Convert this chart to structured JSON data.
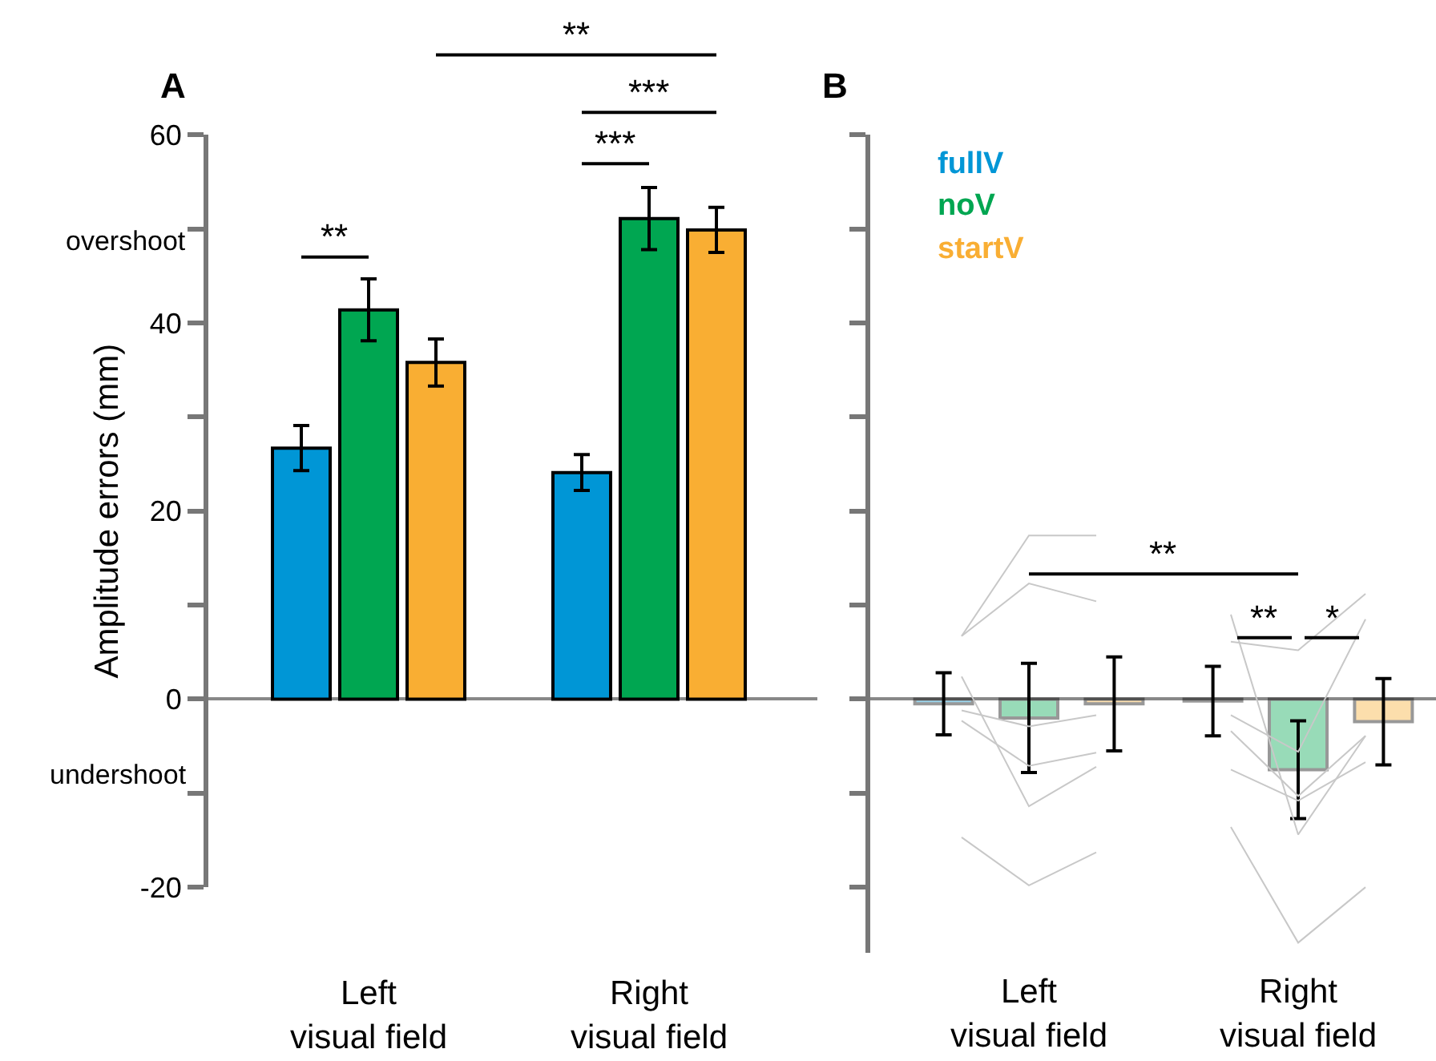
{
  "chart_data": [
    {
      "type": "bar",
      "title": "A",
      "ylabel": "Amplitude errors (mm)",
      "categories": [
        "Left visual field",
        "Right visual field"
      ],
      "series": [
        {
          "color": "#0096d6",
          "values": [
            26.7,
            24.1
          ],
          "errors": [
            2.4,
            1.9
          ]
        },
        {
          "color": "#00a651",
          "values": [
            41.4,
            51.1
          ],
          "errors": [
            3.3,
            3.3
          ]
        },
        {
          "color": "#f9ae33",
          "values": [
            35.8,
            49.9
          ],
          "errors": [
            2.5,
            2.4
          ]
        }
      ],
      "ylim": [
        -20,
        60
      ],
      "yticks": [
        -20,
        {
          "value": -10,
          "label": null
        },
        0,
        {
          "value": 10,
          "label": null
        },
        20,
        {
          "value": 30,
          "label": null
        },
        40,
        {
          "value": 50,
          "label": null
        },
        60
      ],
      "annotations": [
        "overshoot",
        "undershoot",
        "**",
        "***",
        "***",
        "**"
      ],
      "legend": false
    },
    {
      "type": "bar",
      "title": "B",
      "categories": [
        null,
        "Left visual field",
        null,
        null,
        null,
        "Right visual field",
        null
      ],
      "series": [
        {
          "name": "fullV",
          "color": "#0096d6",
          "values": [
            -0.5,
            null,
            null,
            null,
            -0.2,
            null,
            null
          ],
          "errors": [
            3.3,
            null,
            null,
            null,
            3.7,
            null,
            null
          ]
        },
        {
          "name": "noV",
          "color": "#00a651",
          "values": [
            null,
            -2.0,
            null,
            null,
            null,
            -7.5,
            null
          ],
          "errors": [
            null,
            5.8,
            null,
            null,
            null,
            5.2,
            null
          ]
        },
        {
          "name": "startV",
          "color": "#f9ae33",
          "values": [
            null,
            null,
            -0.5,
            null,
            null,
            null,
            -2.4
          ],
          "errors": [
            null,
            null,
            5.0,
            null,
            null,
            null,
            4.6
          ]
        },
        {
          "type": "line",
          "color": "#c8c8c8",
          "values": [
            6.7,
            17.4,
            17.4,
            null,
            null,
            null,
            null
          ]
        },
        {
          "type": "line",
          "color": "#c8c8c8",
          "values": [
            6.7,
            12.3,
            10.4,
            null,
            null,
            null,
            null
          ]
        },
        {
          "type": "line",
          "color": "#c8c8c8",
          "values": [
            2.4,
            -11.4,
            -7.2,
            null,
            null,
            null,
            null
          ]
        },
        {
          "type": "line",
          "color": "#c8c8c8",
          "values": [
            -1.2,
            -2.9,
            -1.7,
            null,
            null,
            null,
            null
          ]
        },
        {
          "type": "line",
          "color": "#c8c8c8",
          "values": [
            -2.3,
            -7.1,
            -5.7,
            null,
            null,
            null,
            null
          ]
        },
        {
          "type": "line",
          "color": "#c8c8c8",
          "values": [
            -14.7,
            -19.8,
            -16.3,
            null,
            null,
            null,
            null
          ]
        },
        {
          "type": "line",
          "color": "#c8c8c8",
          "values": [
            null,
            null,
            null,
            null,
            9.0,
            -14.4,
            -3.9
          ]
        },
        {
          "type": "line",
          "color": "#c8c8c8",
          "values": [
            null,
            null,
            null,
            null,
            6.1,
            5.2,
            11.2
          ]
        },
        {
          "type": "line",
          "color": "#c8c8c8",
          "values": [
            null,
            null,
            null,
            null,
            -1.7,
            -5.6,
            8.5
          ]
        },
        {
          "type": "line",
          "color": "#c8c8c8",
          "values": [
            null,
            null,
            null,
            null,
            -7.5,
            -10.8,
            -6.7
          ]
        },
        {
          "type": "line",
          "color": "#c8c8c8",
          "values": [
            null,
            null,
            null,
            null,
            -13.6,
            -25.9,
            -20.0
          ]
        },
        {
          "type": "line",
          "color": "#c8c8c8",
          "values": [
            null,
            null,
            null,
            null,
            -3.4,
            -10.3,
            -3.9
          ]
        }
      ],
      "ylim": [
        -27,
        60
      ],
      "yticks": [
        -20,
        {
          "value": -10,
          "label": null
        },
        0,
        {
          "value": 10,
          "label": null
        },
        20,
        {
          "value": 30,
          "label": null
        },
        40,
        {
          "value": 50,
          "label": null
        },
        60
      ],
      "tick_labels": "x",
      "legend": "top left",
      "annotations": [
        "**",
        "**",
        "*"
      ]
    }
  ]
}
